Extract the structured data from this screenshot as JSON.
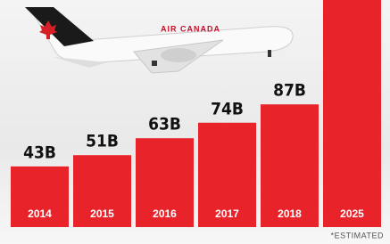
{
  "chart_data": {
    "type": "bar",
    "categories": [
      "2014",
      "2015",
      "2016",
      "2017",
      "2018",
      "2025"
    ],
    "values": [
      43,
      51,
      63,
      74,
      87,
      161
    ],
    "value_labels": [
      "43B",
      "51B",
      "63B",
      "74B",
      "87B",
      null
    ],
    "color": "#e8232a",
    "ylim": [
      0,
      161
    ],
    "annotations": [
      "AIR CANADA"
    ],
    "footnote": "*ESTIMATED"
  }
}
